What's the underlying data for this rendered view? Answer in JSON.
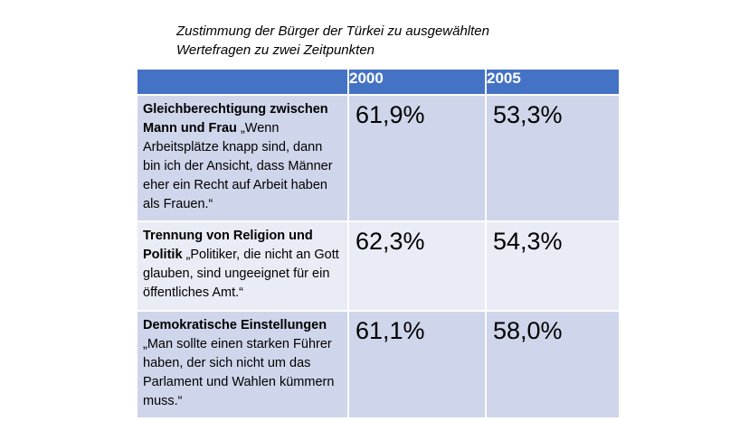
{
  "title": {
    "line1": "Zustimmung der Bürger der Türkei zu ausgewählten",
    "line2": "Wertefragen zu zwei Zeitpunkten"
  },
  "table": {
    "headers": [
      "",
      "2000",
      "2005"
    ],
    "rows": [
      {
        "topic": "Gleichberechtigung zwischen Mann und Frau",
        "quote": "„Wenn Arbeitsplätze knapp sind, dann bin ich der Ansicht, dass Männer eher ein Recht auf Arbeit haben als Frauen.“",
        "v2000": "61,9%",
        "v2005": "53,3%"
      },
      {
        "topic": "Trennung von Religion und Politik",
        "quote": "„Politiker, die nicht an Gott glauben, sind ungeeignet für ein öffentliches Amt.“",
        "v2000": "62,3%",
        "v2005": "54,3%"
      },
      {
        "topic": "Demokratische Einstellungen",
        "quote": "„Man sollte einen starken Führer haben, der sich nicht um das Parlament und Wahlen kümmern muss.“",
        "v2000": "61,1%",
        "v2005": "58,0%"
      }
    ]
  },
  "colors": {
    "header": "#4472c4",
    "row_dark": "#cfd5ea",
    "row_light": "#e9ebf5"
  }
}
